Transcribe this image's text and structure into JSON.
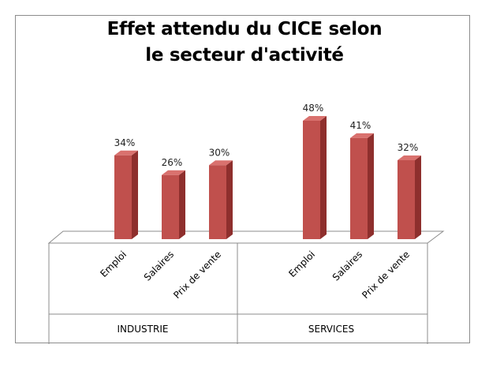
{
  "chart_data": {
    "type": "bar",
    "title_lines": [
      "Effet attendu du CICE selon",
      "le secteur d'activité"
    ],
    "groups": [
      {
        "name": "INDUSTRIE",
        "categories": [
          "Emploi",
          "Salaires",
          "Prix de vente"
        ],
        "values": [
          34,
          26,
          30
        ],
        "labels": [
          "34%",
          "26%",
          "30%"
        ]
      },
      {
        "name": "SERVICES",
        "categories": [
          "Emploi",
          "Salaires",
          "Prix de vente"
        ],
        "values": [
          48,
          41,
          32
        ],
        "labels": [
          "48%",
          "41%",
          "32%"
        ]
      }
    ],
    "ylim": [
      0,
      50
    ],
    "grid": false,
    "legend": "none",
    "bar_color": "#c0504d",
    "bar_side_color": "#8e2f2d",
    "bar_top_color": "#d9716e"
  }
}
